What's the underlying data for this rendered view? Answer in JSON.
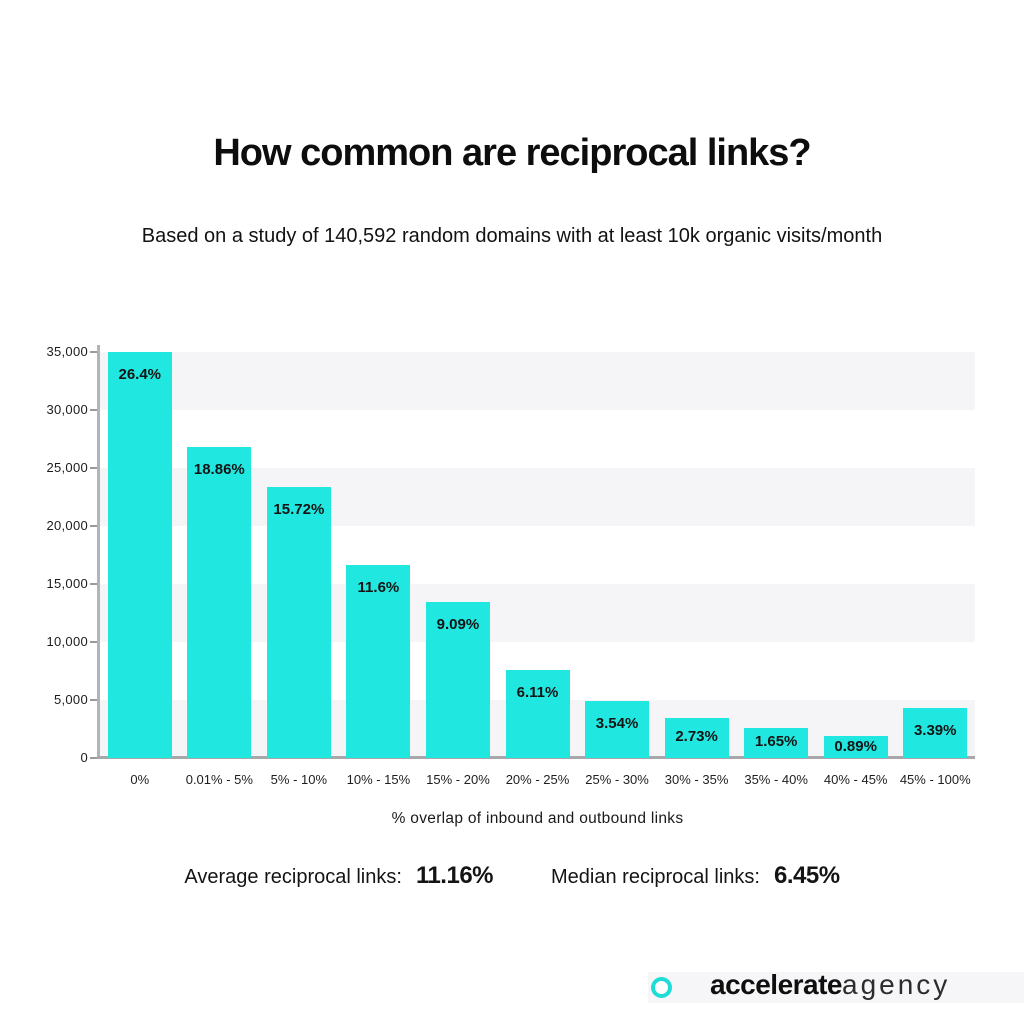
{
  "page": {
    "title": "How common are reciprocal links?",
    "subtitle": "Based on a study of 140,592 random domains with at least 10k organic visits/month"
  },
  "chart_data": {
    "type": "bar",
    "title": "How common are reciprocal links?",
    "subtitle": "Based on a study of 140,592 random domains with at least 10k organic visits/month",
    "total_domains_studied": "140,592",
    "categories": [
      "0%",
      "0.01% - 5%",
      "5% - 10%",
      "10% - 15%",
      "15% - 20%",
      "20% - 25%",
      "25% - 30%",
      "30% - 35%",
      "35% - 40%",
      "40% - 45%",
      "45% - 100%"
    ],
    "bar_labels": [
      "26.4%",
      "18.86%",
      "15.72%",
      "11.6%",
      "9.09%",
      "6.11%",
      "3.54%",
      "2.73%",
      "1.65%",
      "0.89%",
      "3.39%"
    ],
    "percent_values": [
      26.4,
      18.86,
      15.72,
      11.6,
      9.09,
      6.11,
      3.54,
      2.73,
      1.65,
      0.89,
      3.39
    ],
    "values": [
      35000,
      26800,
      23400,
      16600,
      13450,
      7600,
      4900,
      3450,
      2600,
      1900,
      4300
    ],
    "values_note": "domain counts estimated from gridlines",
    "xlabel": "% overlap of inbound and outbound links",
    "ylabel": "",
    "y_ticks": [
      "0",
      "5,000",
      "10,000",
      "15,000",
      "20,000",
      "25,000",
      "30,000",
      "35,000"
    ],
    "ylim": [
      0,
      35600
    ],
    "grid": "alternating horizontal bands",
    "legend": "none"
  },
  "stats": {
    "average_label": "Average reciprocal links:",
    "average_value": "11.16%",
    "median_label": "Median reciprocal links:",
    "median_value": "6.45%"
  },
  "footer": {
    "brand_bold": "accelerate",
    "brand_light": "agency"
  },
  "colors": {
    "bar": "#20e7e0",
    "stripe": "#f5f5f8",
    "axis": "#a8a8a8",
    "ring": "#1edcd6",
    "text": "#141414"
  }
}
